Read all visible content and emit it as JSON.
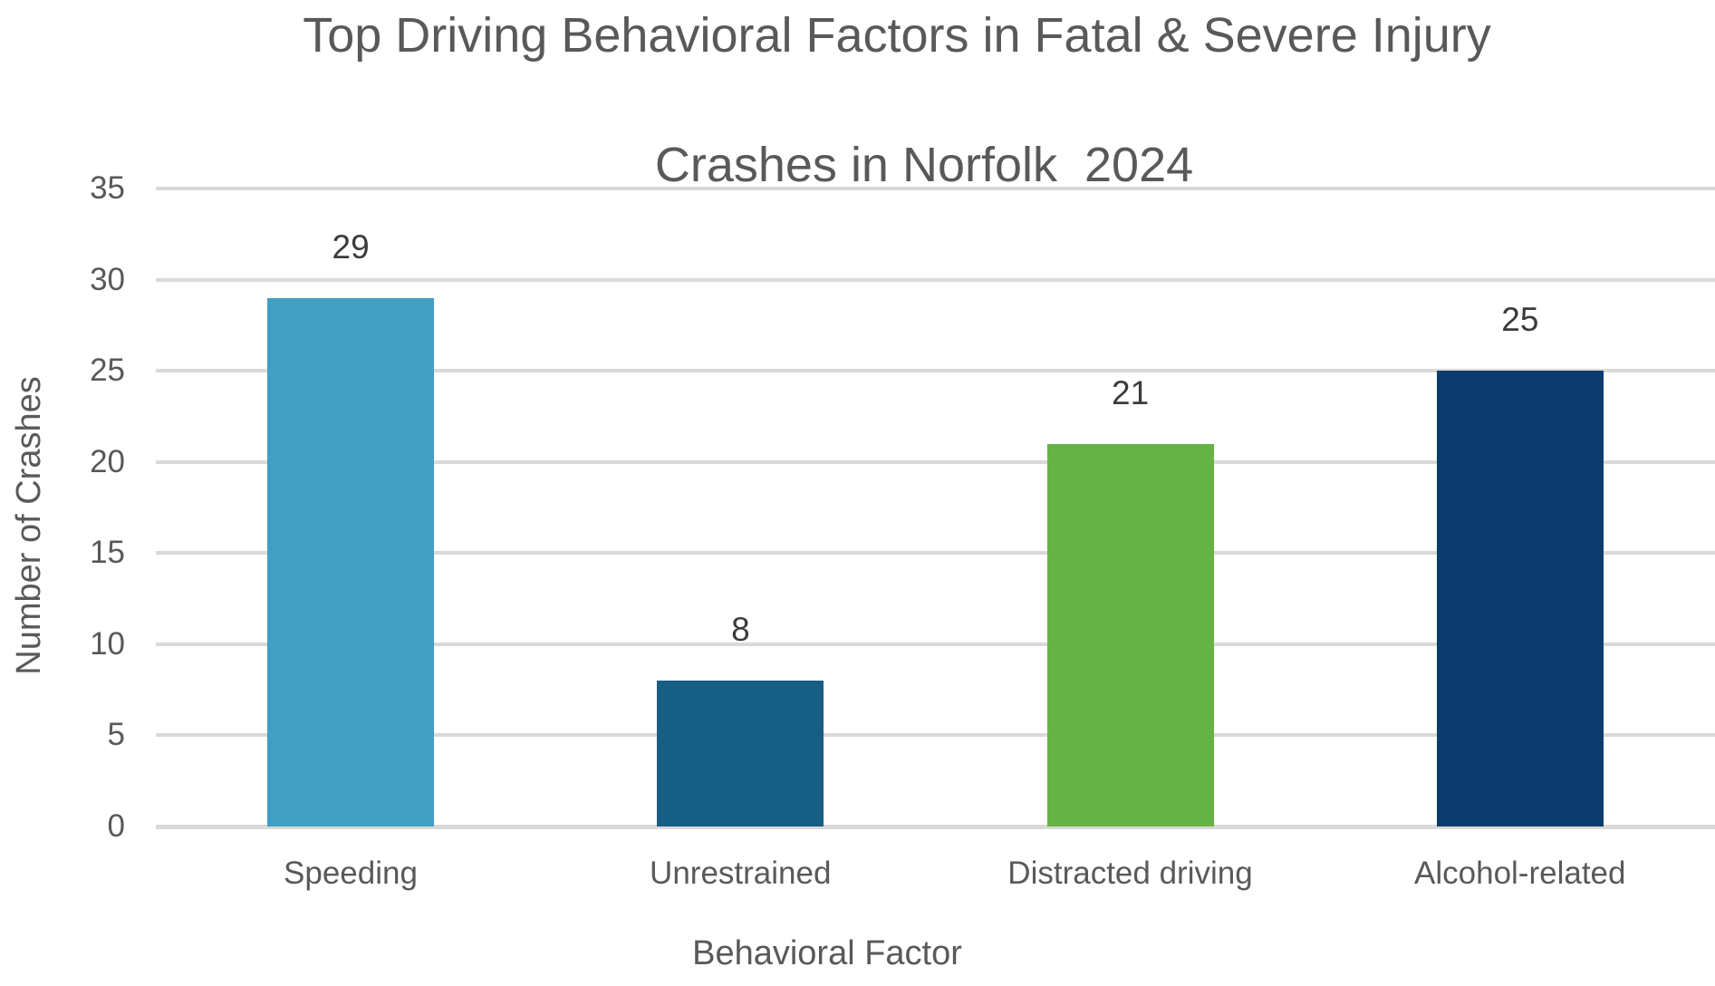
{
  "title": {
    "line1": "Top Driving Behavioral Factors in Fatal & Severe Injury",
    "line2": "Crashes in Norfolk  2024"
  },
  "chart_data": {
    "type": "bar",
    "title": "Top Driving Behavioral Factors in Fatal & Severe Injury Crashes in Norfolk  2024",
    "categories": [
      "Speeding",
      "Unrestrained",
      "Distracted driving",
      "Alcohol-related"
    ],
    "values": [
      29,
      8,
      21,
      25
    ],
    "data_labels": [
      "29",
      "8",
      "21",
      "25"
    ],
    "bar_colors": [
      "#419FC2",
      "#175E86",
      "#66B345",
      "#0B3C6D"
    ],
    "xlabel": "Behavioral Factor",
    "ylabel": "Number of Crashes",
    "ylim": [
      0,
      35
    ],
    "yticks": [
      0,
      5,
      10,
      15,
      20,
      25,
      30,
      35
    ],
    "grid": "horizontal",
    "legend": "none"
  },
  "colors": {
    "axis_text": "#595959",
    "data_label_text": "#3B3B3B",
    "gridline": "#D9D9D9",
    "background": "#FFFFFF"
  }
}
